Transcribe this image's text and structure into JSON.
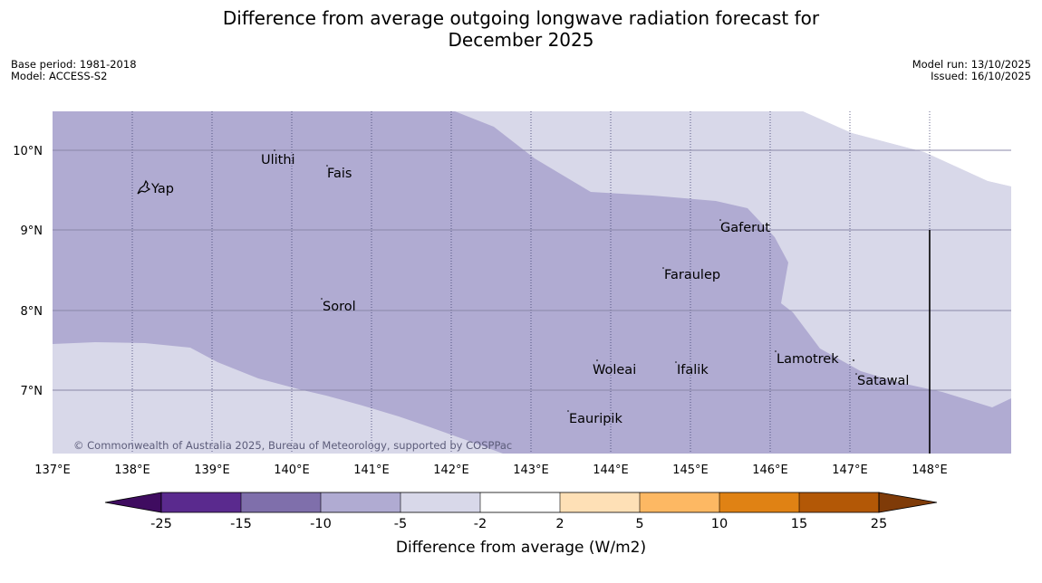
{
  "title_line1": "Difference from average outgoing longwave radiation forecast for",
  "title_line2": "December 2025",
  "meta_left": {
    "base_period": "Base period: 1981-2018",
    "model": "Model: ACCESS-S2"
  },
  "meta_right": {
    "model_run": "Model run: 13/10/2025",
    "issued": "Issued: 16/10/2025"
  },
  "map": {
    "lon_labels": [
      "137°E",
      "138°E",
      "139°E",
      "140°E",
      "141°E",
      "142°E",
      "143°E",
      "144°E",
      "145°E",
      "146°E",
      "147°E",
      "148°E"
    ],
    "lat_labels": [
      "10°N",
      "9°N",
      "8°N",
      "7°N"
    ],
    "places": [
      "Ulithi",
      "Fais",
      "Yap",
      "Gaferut",
      "Faraulep",
      "Sorol",
      "Lamotrek",
      "Woleai",
      "Ifalik",
      "Satawal",
      "Eauripik"
    ],
    "copyright": "© Commonwealth of Australia 2025, Bureau of Meteorology, supported by COSPPac",
    "fill_colors": {
      "between_minus10_minus5": "#b0abd2",
      "between_minus5_minus2": "#d8d8e9"
    }
  },
  "colorbar": {
    "ticks": [
      "-25",
      "-15",
      "-10",
      "-5",
      "-2",
      "2",
      "5",
      "10",
      "15",
      "25"
    ],
    "colors": [
      "#3f0c60",
      "#5a2a8e",
      "#7f6fab",
      "#b0abd2",
      "#d8d8e9",
      "#ffffff",
      "#fee0b6",
      "#fdb863",
      "#e08214",
      "#b35806",
      "#7f3b08"
    ],
    "label": "Difference from average (W/m2)"
  }
}
